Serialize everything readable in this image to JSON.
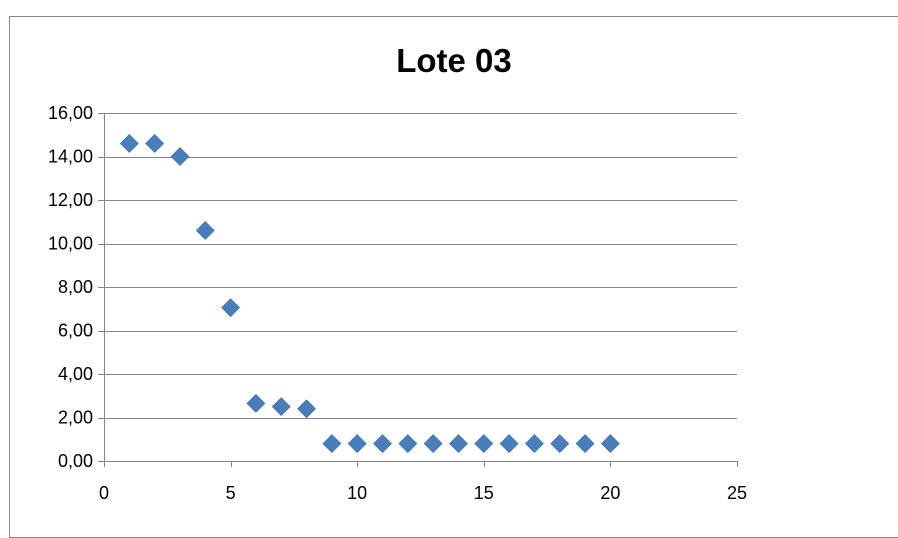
{
  "chart_data": {
    "type": "scatter",
    "title": "Lote 03",
    "xlabel": "",
    "ylabel": "",
    "xlim": [
      0,
      25
    ],
    "ylim": [
      0,
      16
    ],
    "x_ticks": [
      0,
      5,
      10,
      15,
      20,
      25
    ],
    "y_ticks": [
      0,
      2,
      4,
      6,
      8,
      10,
      12,
      14,
      16
    ],
    "y_tick_labels": [
      "0,00",
      "2,00",
      "4,00",
      "6,00",
      "8,00",
      "10,00",
      "12,00",
      "14,00",
      "16,00"
    ],
    "grid": "horizontal",
    "legend": "none",
    "marker": "diamond",
    "series": [
      {
        "color": "#4a7ebb",
        "x": [
          1,
          2,
          3,
          4,
          5,
          6,
          7,
          8,
          9,
          10,
          11,
          12,
          13,
          14,
          15,
          16,
          17,
          18,
          19,
          20
        ],
        "y": [
          14.6,
          14.6,
          14.0,
          10.6,
          7.05,
          2.65,
          2.5,
          2.4,
          0.8,
          0.8,
          0.8,
          0.8,
          0.8,
          0.8,
          0.8,
          0.8,
          0.8,
          0.8,
          0.8,
          0.8
        ]
      }
    ]
  }
}
